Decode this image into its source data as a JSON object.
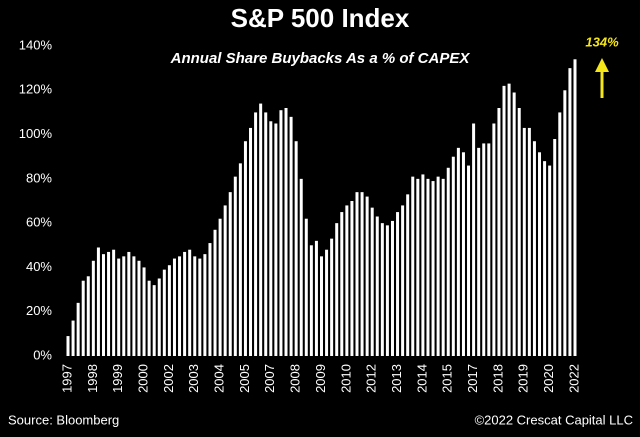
{
  "chart_data": {
    "type": "bar",
    "title": "S&P 500 Index",
    "subtitle": "Annual Share Buybacks As a % of CAPEX",
    "annotation": "134%",
    "source": "Source: Bloomberg",
    "copyright": "©2022 Crescat Capital LLC",
    "categories": [
      "1997",
      null,
      null,
      null,
      null,
      "1998",
      null,
      null,
      null,
      null,
      "1999",
      null,
      null,
      null,
      null,
      "2000",
      null,
      null,
      null,
      null,
      "2002",
      null,
      null,
      null,
      null,
      "2003",
      null,
      null,
      null,
      null,
      "2004",
      null,
      null,
      null,
      null,
      "2005",
      null,
      null,
      null,
      null,
      "2007",
      null,
      null,
      null,
      null,
      "2008",
      null,
      null,
      null,
      null,
      "2009",
      null,
      null,
      null,
      null,
      "2010",
      null,
      null,
      null,
      null,
      "2012",
      null,
      null,
      null,
      null,
      "2013",
      null,
      null,
      null,
      null,
      "2014",
      null,
      null,
      null,
      null,
      "2015",
      null,
      null,
      null,
      null,
      "2017",
      null,
      null,
      null,
      null,
      "2018",
      null,
      null,
      null,
      null,
      "2019",
      null,
      null,
      null,
      null,
      "2020",
      null,
      null,
      null,
      null,
      "2022"
    ],
    "values": [
      9,
      16,
      24,
      34,
      36,
      43,
      49,
      46,
      47,
      48,
      44,
      45,
      47,
      45,
      43,
      40,
      34,
      32,
      35,
      39,
      41,
      44,
      45,
      47,
      48,
      45,
      44,
      46,
      51,
      57,
      62,
      68,
      74,
      81,
      87,
      97,
      103,
      110,
      114,
      110,
      106,
      105,
      111,
      112,
      108,
      97,
      80,
      62,
      50,
      52,
      45,
      48,
      53,
      60,
      65,
      68,
      70,
      74,
      74,
      72,
      67,
      63,
      60,
      59,
      61,
      65,
      68,
      73,
      81,
      80,
      82,
      80,
      79,
      81,
      80,
      85,
      90,
      94,
      92,
      86,
      105,
      94,
      96,
      96,
      105,
      112,
      122,
      123,
      119,
      112,
      103,
      103,
      97,
      92,
      88,
      86,
      98,
      110,
      120,
      130,
      134
    ],
    "color": "#ffffff",
    "annotation_color": "#f5e61a",
    "ylim": [
      0,
      140
    ],
    "yticks": [
      {
        "value": 0,
        "label": "0%"
      },
      {
        "value": 20,
        "label": "20%"
      },
      {
        "value": 40,
        "label": "40%"
      },
      {
        "value": 60,
        "label": "60%"
      },
      {
        "value": 80,
        "label": "80%"
      },
      {
        "value": 100,
        "label": "100%"
      },
      {
        "value": 120,
        "label": "120%"
      },
      {
        "value": 140,
        "label": "140%"
      }
    ]
  }
}
